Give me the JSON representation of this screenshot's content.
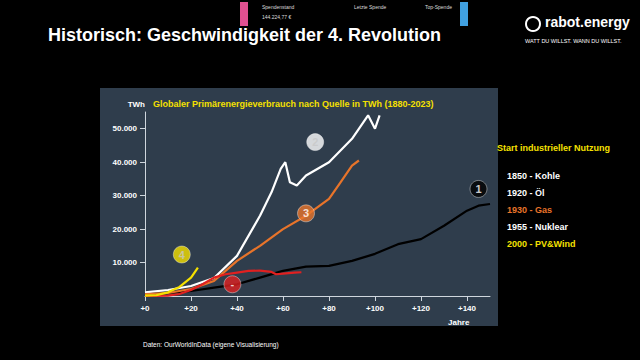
{
  "page": {
    "title": "Historisch: Geschwindigkeit der 4. Revolution",
    "logo": "rabot.energy",
    "slogan": "WATT DU WILLST. WANN DU WILLST.",
    "overlay": [
      "Spendenstand",
      "144.224,77 €",
      "Letzte Spende",
      "Top-Spende"
    ],
    "source": "Daten: OurWorldInData (eigene Visualisierung)"
  },
  "chart_data": {
    "type": "line",
    "title": "Globaler Primärenergieverbrauch nach Quelle in TWh (1880-2023)",
    "y_label": "TWh",
    "x_label": "Jahre",
    "legend_title": "Start industrieller Nutzung",
    "legend": "right",
    "grid": false,
    "xlim": [
      0,
      150
    ],
    "xticks": [
      {
        "value": 0,
        "label": "+0"
      },
      {
        "value": 20,
        "label": "+20"
      },
      {
        "value": 40,
        "label": "+40"
      },
      {
        "value": 60,
        "label": "+60"
      },
      {
        "value": 80,
        "label": "+80"
      },
      {
        "value": 100,
        "label": "+100"
      },
      {
        "value": 120,
        "label": "+120"
      },
      {
        "value": 140,
        "label": "+140"
      }
    ],
    "ylim": [
      0,
      55000
    ],
    "yticks": [
      {
        "value": 10000,
        "label": "10.000"
      },
      {
        "value": 20000,
        "label": "20.000"
      },
      {
        "value": 30000,
        "label": "30.000"
      },
      {
        "value": 40000,
        "label": "40.000"
      },
      {
        "value": 50000,
        "label": "50.000"
      }
    ],
    "series": [
      {
        "name": "1850 - Kohle",
        "color": "#000000",
        "x": [
          0,
          10,
          20,
          30,
          40,
          50,
          60,
          70,
          80,
          90,
          100,
          110,
          120,
          130,
          140,
          145,
          150
        ],
        "values": [
          500,
          900,
          1500,
          2500,
          3500,
          5500,
          7500,
          8800,
          9000,
          10500,
          12600,
          15500,
          17000,
          21000,
          25500,
          27000,
          27500
        ]
      },
      {
        "name": "1920 - Öl",
        "color": "#ffffff",
        "x": [
          0,
          10,
          20,
          30,
          40,
          50,
          55,
          59,
          61,
          63,
          66,
          70,
          80,
          90,
          97,
          100,
          102
        ],
        "values": [
          1100,
          1800,
          3000,
          5400,
          12000,
          24000,
          31000,
          38000,
          40000,
          34000,
          33000,
          36000,
          40000,
          47000,
          54000,
          50000,
          54000
        ]
      },
      {
        "name": "1930 - Gas",
        "color": "#e8742a",
        "x": [
          0,
          10,
          20,
          30,
          40,
          50,
          60,
          70,
          80,
          85,
          90,
          93
        ],
        "values": [
          600,
          900,
          2100,
          4500,
          10500,
          15000,
          20000,
          24000,
          29000,
          34000,
          39000,
          40500
        ]
      },
      {
        "name": "1955 - Nuklear",
        "color": "#e02020",
        "x": [
          0,
          10,
          15,
          20,
          25,
          30,
          35,
          40,
          45,
          50,
          55,
          57,
          60,
          65,
          68
        ],
        "values": [
          0,
          100,
          600,
          1800,
          3500,
          5500,
          6500,
          7000,
          7500,
          7600,
          7200,
          6500,
          6700,
          7000,
          7100
        ]
      },
      {
        "name": "2000 - PV&Wind",
        "color": "#f5e000",
        "x": [
          0,
          5,
          10,
          15,
          20,
          21,
          23
        ],
        "values": [
          90,
          250,
          1100,
          2700,
          5500,
          6500,
          8500
        ]
      }
    ],
    "annotations": [
      {
        "text": "1",
        "x": 145,
        "y": 32000,
        "color": "#000000"
      },
      {
        "text": "2",
        "x": 74,
        "y": 46000,
        "color": "#ffffff"
      },
      {
        "text": "3",
        "x": 70,
        "y": 24700,
        "color": "#e8742a"
      },
      {
        "text": "4",
        "x": 16,
        "y": 12400,
        "color": "#f5e000"
      },
      {
        "text": "-",
        "x": 38,
        "y": 3500,
        "color": "#e02020"
      }
    ]
  }
}
